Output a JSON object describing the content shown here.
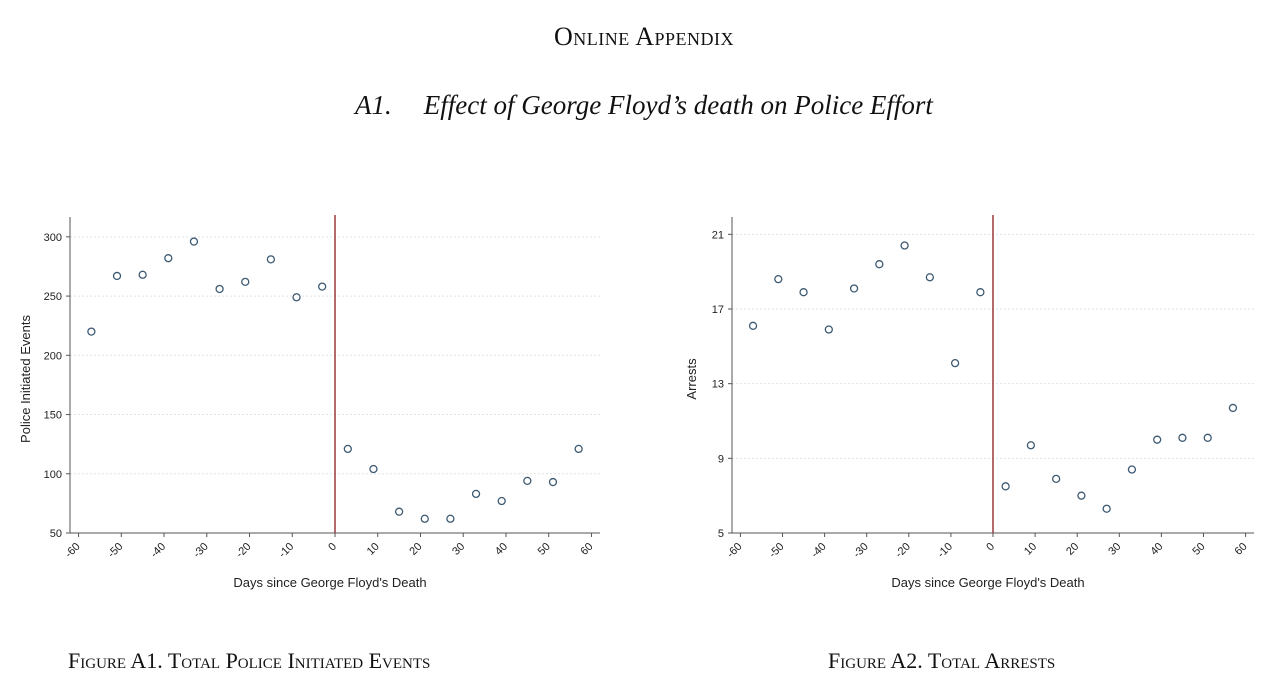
{
  "header": {
    "appendix_title": "Online Appendix",
    "section_number": "A1.",
    "section_title": "Effect of George Floyd’s death on Police Effort"
  },
  "captions": {
    "figure_a1": "Figure A1. Total Police Initiated Events",
    "figure_a2": "Figure A2. Total Arrests"
  },
  "colors": {
    "marker_stroke": "#3d5a73",
    "cutoff_line": "#a04545",
    "grid": "#e3e3e3",
    "axis": "#555555"
  },
  "chart_data": [
    {
      "type": "scatter",
      "title": "",
      "xlabel": "Days since George Floyd's Death",
      "ylabel": "Police Initiated Events",
      "xlim": [
        -62,
        62
      ],
      "ylim": [
        50,
        310
      ],
      "xticks": [
        -60,
        -50,
        -40,
        -30,
        -20,
        -10,
        0,
        10,
        20,
        30,
        40,
        50,
        60
      ],
      "yticks": [
        50,
        100,
        150,
        200,
        250,
        300
      ],
      "grid": true,
      "vline_x": 0,
      "x": [
        -57,
        -51,
        -45,
        -39,
        -33,
        -27,
        -21,
        -15,
        -9,
        -3,
        3,
        9,
        15,
        21,
        27,
        33,
        39,
        45,
        51,
        57
      ],
      "y": [
        220,
        267,
        268,
        282,
        296,
        256,
        262,
        281,
        249,
        258,
        121,
        104,
        68,
        62,
        62,
        83,
        77,
        94,
        93,
        121
      ]
    },
    {
      "type": "scatter",
      "title": "",
      "xlabel": "Days since George Floyd's Death",
      "ylabel": "Arrests",
      "xlim": [
        -62,
        62
      ],
      "ylim": [
        5,
        21.5
      ],
      "xticks": [
        -60,
        -50,
        -40,
        -30,
        -20,
        -10,
        0,
        10,
        20,
        30,
        40,
        50,
        60
      ],
      "yticks": [
        5,
        9,
        13,
        17,
        21
      ],
      "grid": true,
      "vline_x": 0,
      "x": [
        -57,
        -51,
        -45,
        -39,
        -33,
        -27,
        -21,
        -15,
        -9,
        -3,
        3,
        9,
        15,
        21,
        27,
        33,
        39,
        45,
        51,
        57
      ],
      "y": [
        16.1,
        18.6,
        17.9,
        15.9,
        18.1,
        19.4,
        20.4,
        18.7,
        14.1,
        17.9,
        7.5,
        9.7,
        7.9,
        7.0,
        6.3,
        8.4,
        10.0,
        10.1,
        10.1,
        11.7
      ]
    }
  ]
}
